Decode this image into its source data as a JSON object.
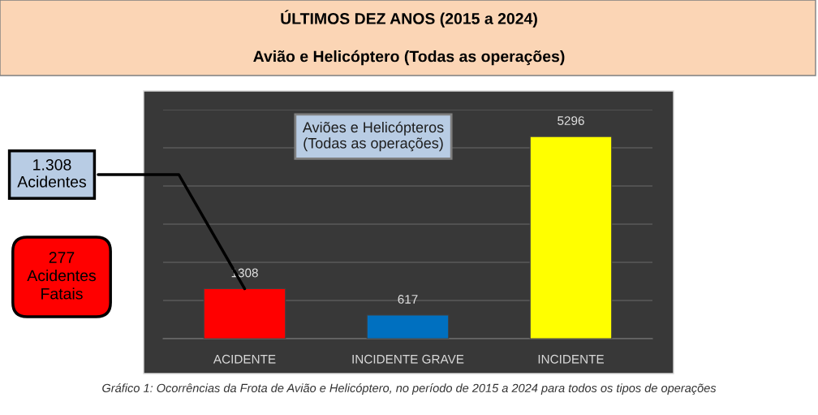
{
  "chart_data": {
    "type": "bar",
    "title": "ÚLTIMOS DEZ ANOS (2015 a 2024)",
    "subtitle": "Avião e Helicóptero (Todas as operações)",
    "categories": [
      "ACIDENTE",
      "INCIDENTE GRAVE",
      "INCIDENTE"
    ],
    "values": [
      1308,
      617,
      5296
    ],
    "colors": [
      "#ff0000",
      "#0070c0",
      "#ffff00"
    ],
    "data_labels": true,
    "ylim": [
      0,
      6000
    ],
    "yticks": [
      {
        "value": 0,
        "label": null
      },
      {
        "value": 1000,
        "label": null
      },
      {
        "value": 2000,
        "label": null
      },
      {
        "value": 3000,
        "label": null
      },
      {
        "value": 4000,
        "label": null
      },
      {
        "value": 5000,
        "label": null
      },
      {
        "value": 6000,
        "label": null
      }
    ],
    "tick_labels": "x",
    "grid": "y",
    "legend": false,
    "annotations": [
      {
        "text": "1.308\nAcidentes",
        "x": "ACIDENTE",
        "y": 1308
      },
      "277\nAcidentes\nFatais",
      "Aviões e Helicópteros\n(Todas as operações)",
      "Gráfico 1: Ocorrências da Frota de Avião e Helicóptero, no período de 2015 a 2024 para todos os tipos de operações"
    ]
  }
}
